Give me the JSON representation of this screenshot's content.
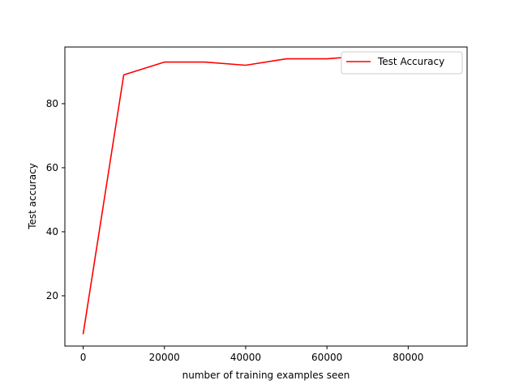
{
  "chart_data": {
    "type": "line",
    "xlabel": "number of training examples seen",
    "ylabel": "Test accuracy",
    "xlim": [
      -4500,
      94500
    ],
    "ylim": [
      4.3,
      97.7
    ],
    "xticks": [
      0,
      20000,
      40000,
      60000,
      80000
    ],
    "xtick_labels": [
      "0",
      "20000",
      "40000",
      "60000",
      "80000"
    ],
    "yticks": [
      20,
      40,
      60,
      80
    ],
    "ytick_labels": [
      "20",
      "40",
      "60",
      "80"
    ],
    "grid": false,
    "legend_placement": "top-right",
    "series": [
      {
        "name": "Test Accuracy",
        "color": "#ff0000",
        "x": [
          0,
          10000,
          20000,
          30000,
          40000,
          50000,
          60000,
          70000,
          80000,
          90000
        ],
        "y": [
          8,
          89,
          93,
          93,
          92,
          94,
          94,
          95,
          95,
          95
        ]
      }
    ]
  }
}
